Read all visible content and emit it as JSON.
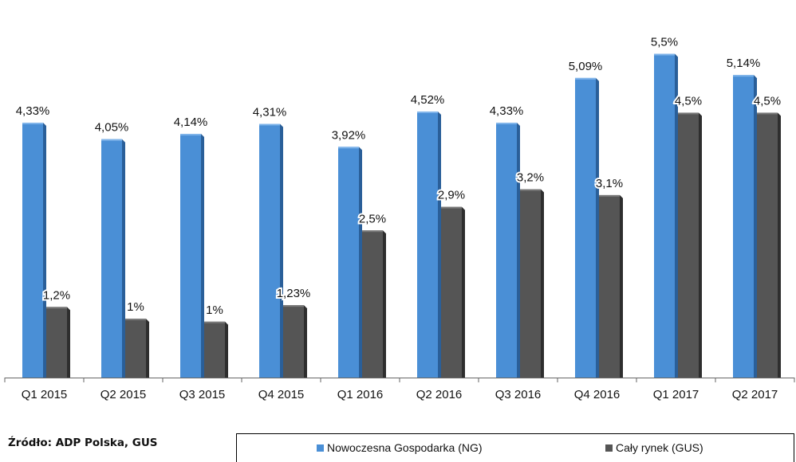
{
  "source": "Źródło: ADP Polska, GUS",
  "colors": {
    "ng": "#4a8fd6",
    "ng_dark": "#2a5f99",
    "gus": "#555555",
    "gus_dark": "#2e2e2e"
  },
  "chart_data": {
    "type": "bar",
    "categories": [
      "Q1 2015",
      "Q2 2015",
      "Q3 2015",
      "Q4 2015",
      "Q1 2016",
      "Q2 2016",
      "Q3 2016",
      "Q4 2016",
      "Q1 2017",
      "Q2 2017"
    ],
    "series": [
      {
        "name": "Nowoczesna Gospodarka (NG)",
        "values": [
          4.33,
          4.05,
          4.14,
          4.31,
          3.92,
          4.52,
          4.33,
          5.09,
          5.5,
          5.14
        ],
        "labels": [
          "4,33%",
          "4,05%",
          "4,14%",
          "4,31%",
          "3,92%",
          "4,52%",
          "4,33%",
          "5,09%",
          "5,5%",
          "5,14%"
        ]
      },
      {
        "name": "Cały rynek (GUS)",
        "values": [
          1.2,
          1.0,
          0.95,
          1.23,
          2.5,
          2.9,
          3.2,
          3.1,
          4.5,
          4.5
        ],
        "labels": [
          "1,2%",
          "1%",
          "1%",
          "1,23%",
          "2,5%",
          "2,9%",
          "3,2%",
          "3,1%",
          "4,5%",
          "4,5%"
        ]
      }
    ],
    "ylim": [
      0,
      5.9
    ],
    "grid": false,
    "legend_position": "bottom"
  }
}
